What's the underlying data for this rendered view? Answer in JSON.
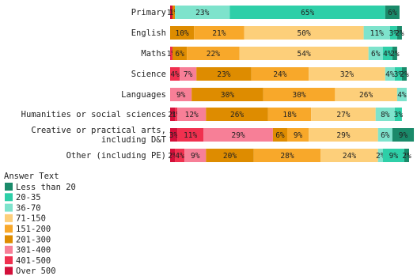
{
  "chart_data": {
    "type": "bar",
    "orientation": "horizontal",
    "stacked": true,
    "categories": [
      "Primary",
      "English",
      "Maths",
      "Science",
      "Languages",
      "Humanities or social sciences",
      "Creative or practical arts, including D&T",
      "Other (including PE)"
    ],
    "category_lines": [
      [
        "Primary"
      ],
      [
        "English"
      ],
      [
        "Maths"
      ],
      [
        "Science"
      ],
      [
        "Languages"
      ],
      [
        "Humanities or social sciences"
      ],
      [
        "Creative or practical arts,",
        "including D&T"
      ],
      [
        "Other (including PE)"
      ]
    ],
    "series": [
      {
        "name": "Less than 20",
        "color": "#1a8a6a",
        "values": [
          6,
          2,
          2,
          2,
          0,
          0,
          9,
          2
        ]
      },
      {
        "name": "20-35",
        "color": "#2ecfa8",
        "values": [
          65,
          3,
          4,
          3,
          0,
          3,
          0,
          9
        ]
      },
      {
        "name": "36-70",
        "color": "#7ee3cc",
        "values": [
          23,
          11,
          6,
          4,
          4,
          8,
          6,
          2
        ]
      },
      {
        "name": "71-150",
        "color": "#fdcf7a",
        "values": [
          0,
          50,
          54,
          32,
          26,
          27,
          29,
          24
        ]
      },
      {
        "name": "151-200",
        "color": "#f8a82a",
        "values": [
          0,
          21,
          22,
          24,
          30,
          18,
          9,
          28
        ]
      },
      {
        "name": "201-300",
        "color": "#de8c00",
        "values": [
          1,
          10,
          6,
          23,
          30,
          26,
          6,
          20
        ]
      },
      {
        "name": "301-400",
        "color": "#f77f97",
        "values": [
          0,
          0,
          0,
          7,
          9,
          12,
          29,
          9
        ]
      },
      {
        "name": "401-500",
        "color": "#f0304f",
        "values": [
          0,
          0,
          1,
          4,
          0,
          1,
          11,
          4
        ]
      },
      {
        "name": "Over 500",
        "color": "#d3103a",
        "values": [
          1,
          0,
          0,
          0,
          0,
          2,
          3,
          2
        ]
      }
    ],
    "value_format": "percent",
    "xlim": [
      0,
      100
    ],
    "legend": {
      "title": "Answer Text",
      "placement": "bottom-left"
    }
  }
}
